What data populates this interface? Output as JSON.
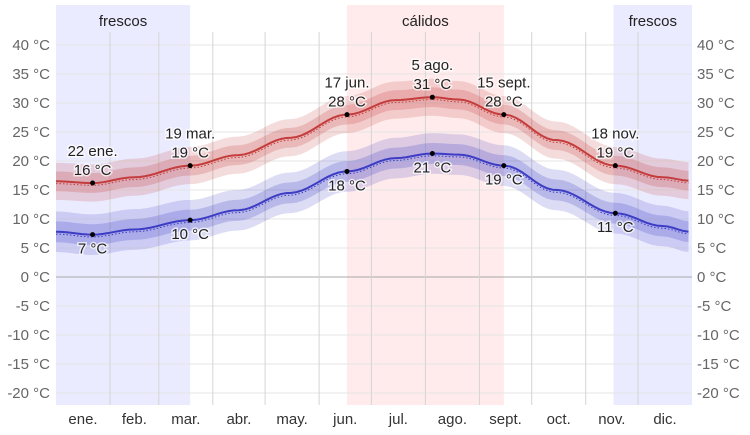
{
  "chart_data": {
    "type": "line",
    "title": "",
    "xlabel": "",
    "ylabel": "",
    "ylim": [
      -20,
      40
    ],
    "y_ticks": [
      "40 °C",
      "35 °C",
      "30 °C",
      "25 °C",
      "20 °C",
      "15 °C",
      "10 °C",
      "5 °C",
      "0 °C",
      "-5 °C",
      "-10 °C",
      "-15 °C",
      "-20 °C"
    ],
    "y_tick_values": [
      40,
      35,
      30,
      25,
      20,
      15,
      10,
      5,
      0,
      -5,
      -10,
      -15,
      -20
    ],
    "x_ticks": [
      "ene.",
      "feb.",
      "mar.",
      "abr.",
      "may.",
      "jun.",
      "jul.",
      "ago.",
      "sept.",
      "oct.",
      "nov.",
      "dic."
    ],
    "grid": true,
    "colors": {
      "high": "#c43c3c",
      "low": "#3c3cc4",
      "cool_band": "#ebebff",
      "warm_band": "#ffebeb"
    },
    "seasons": [
      {
        "label": "frescos",
        "start": "01-01",
        "end": "03-18",
        "color": "#ebebff"
      },
      {
        "label": "cálidos",
        "start": "06-17",
        "end": "09-14",
        "color": "#ffebeb"
      },
      {
        "label": "frescos",
        "start": "11-17",
        "end": "12-31",
        "color": "#ebebff"
      }
    ],
    "series": [
      {
        "key": "high",
        "dates": [
          "01-01",
          "01-22",
          "02-15",
          "03-19",
          "04-15",
          "05-15",
          "06-17",
          "07-15",
          "08-05",
          "08-20",
          "09-15",
          "10-15",
          "11-18",
          "12-15",
          "12-31"
        ],
        "values": [
          16.5,
          16.2,
          17.2,
          19.2,
          21,
          24,
          28,
          30.5,
          31,
          30.6,
          28,
          23.6,
          19.2,
          17.2,
          16.6
        ],
        "p25_p75_halfwidth": 1.7,
        "p10_p90_halfwidth": 3.2
      },
      {
        "key": "low",
        "dates": [
          "01-01",
          "01-22",
          "02-15",
          "03-19",
          "04-15",
          "05-15",
          "06-17",
          "07-15",
          "08-05",
          "08-20",
          "09-15",
          "10-15",
          "11-18",
          "12-15",
          "12-31"
        ],
        "values": [
          7.8,
          7.3,
          8.2,
          9.8,
          11.5,
          14.5,
          18.2,
          20.5,
          21.3,
          21.1,
          19.2,
          15,
          11,
          8.8,
          7.8
        ],
        "p25_p75_halfwidth": 1.8,
        "p10_p90_halfwidth": 3.5
      }
    ],
    "annotations": [
      {
        "date": "01-22",
        "series": "high",
        "label_date": "22 ene.",
        "label_value": "16 °C",
        "value": 16.2,
        "pos": "above"
      },
      {
        "date": "03-19",
        "series": "high",
        "label_date": "19 mar.",
        "label_value": "19 °C",
        "value": 19.2,
        "pos": "above"
      },
      {
        "date": "06-17",
        "series": "high",
        "label_date": "17 jun.",
        "label_value": "28 °C",
        "value": 28,
        "pos": "above"
      },
      {
        "date": "08-05",
        "series": "high",
        "label_date": "5 ago.",
        "label_value": "31 °C",
        "value": 31,
        "pos": "above"
      },
      {
        "date": "09-15",
        "series": "high",
        "label_date": "15 sept.",
        "label_value": "28 °C",
        "value": 28,
        "pos": "above"
      },
      {
        "date": "11-18",
        "series": "high",
        "label_date": "18 nov.",
        "label_value": "19 °C",
        "value": 19.2,
        "pos": "above"
      },
      {
        "date": "01-22",
        "series": "low",
        "label_date": "",
        "label_value": "7 °C",
        "value": 7.3,
        "pos": "below"
      },
      {
        "date": "03-19",
        "series": "low",
        "label_date": "",
        "label_value": "10 °C",
        "value": 9.8,
        "pos": "below"
      },
      {
        "date": "06-17",
        "series": "low",
        "label_date": "",
        "label_value": "18 °C",
        "value": 18.2,
        "pos": "below"
      },
      {
        "date": "08-05",
        "series": "low",
        "label_date": "",
        "label_value": "21 °C",
        "value": 21.3,
        "pos": "below"
      },
      {
        "date": "09-15",
        "series": "low",
        "label_date": "",
        "label_value": "19 °C",
        "value": 19.2,
        "pos": "below"
      },
      {
        "date": "11-18",
        "series": "low",
        "label_date": "",
        "label_value": "11 °C",
        "value": 11,
        "pos": "below"
      }
    ]
  }
}
